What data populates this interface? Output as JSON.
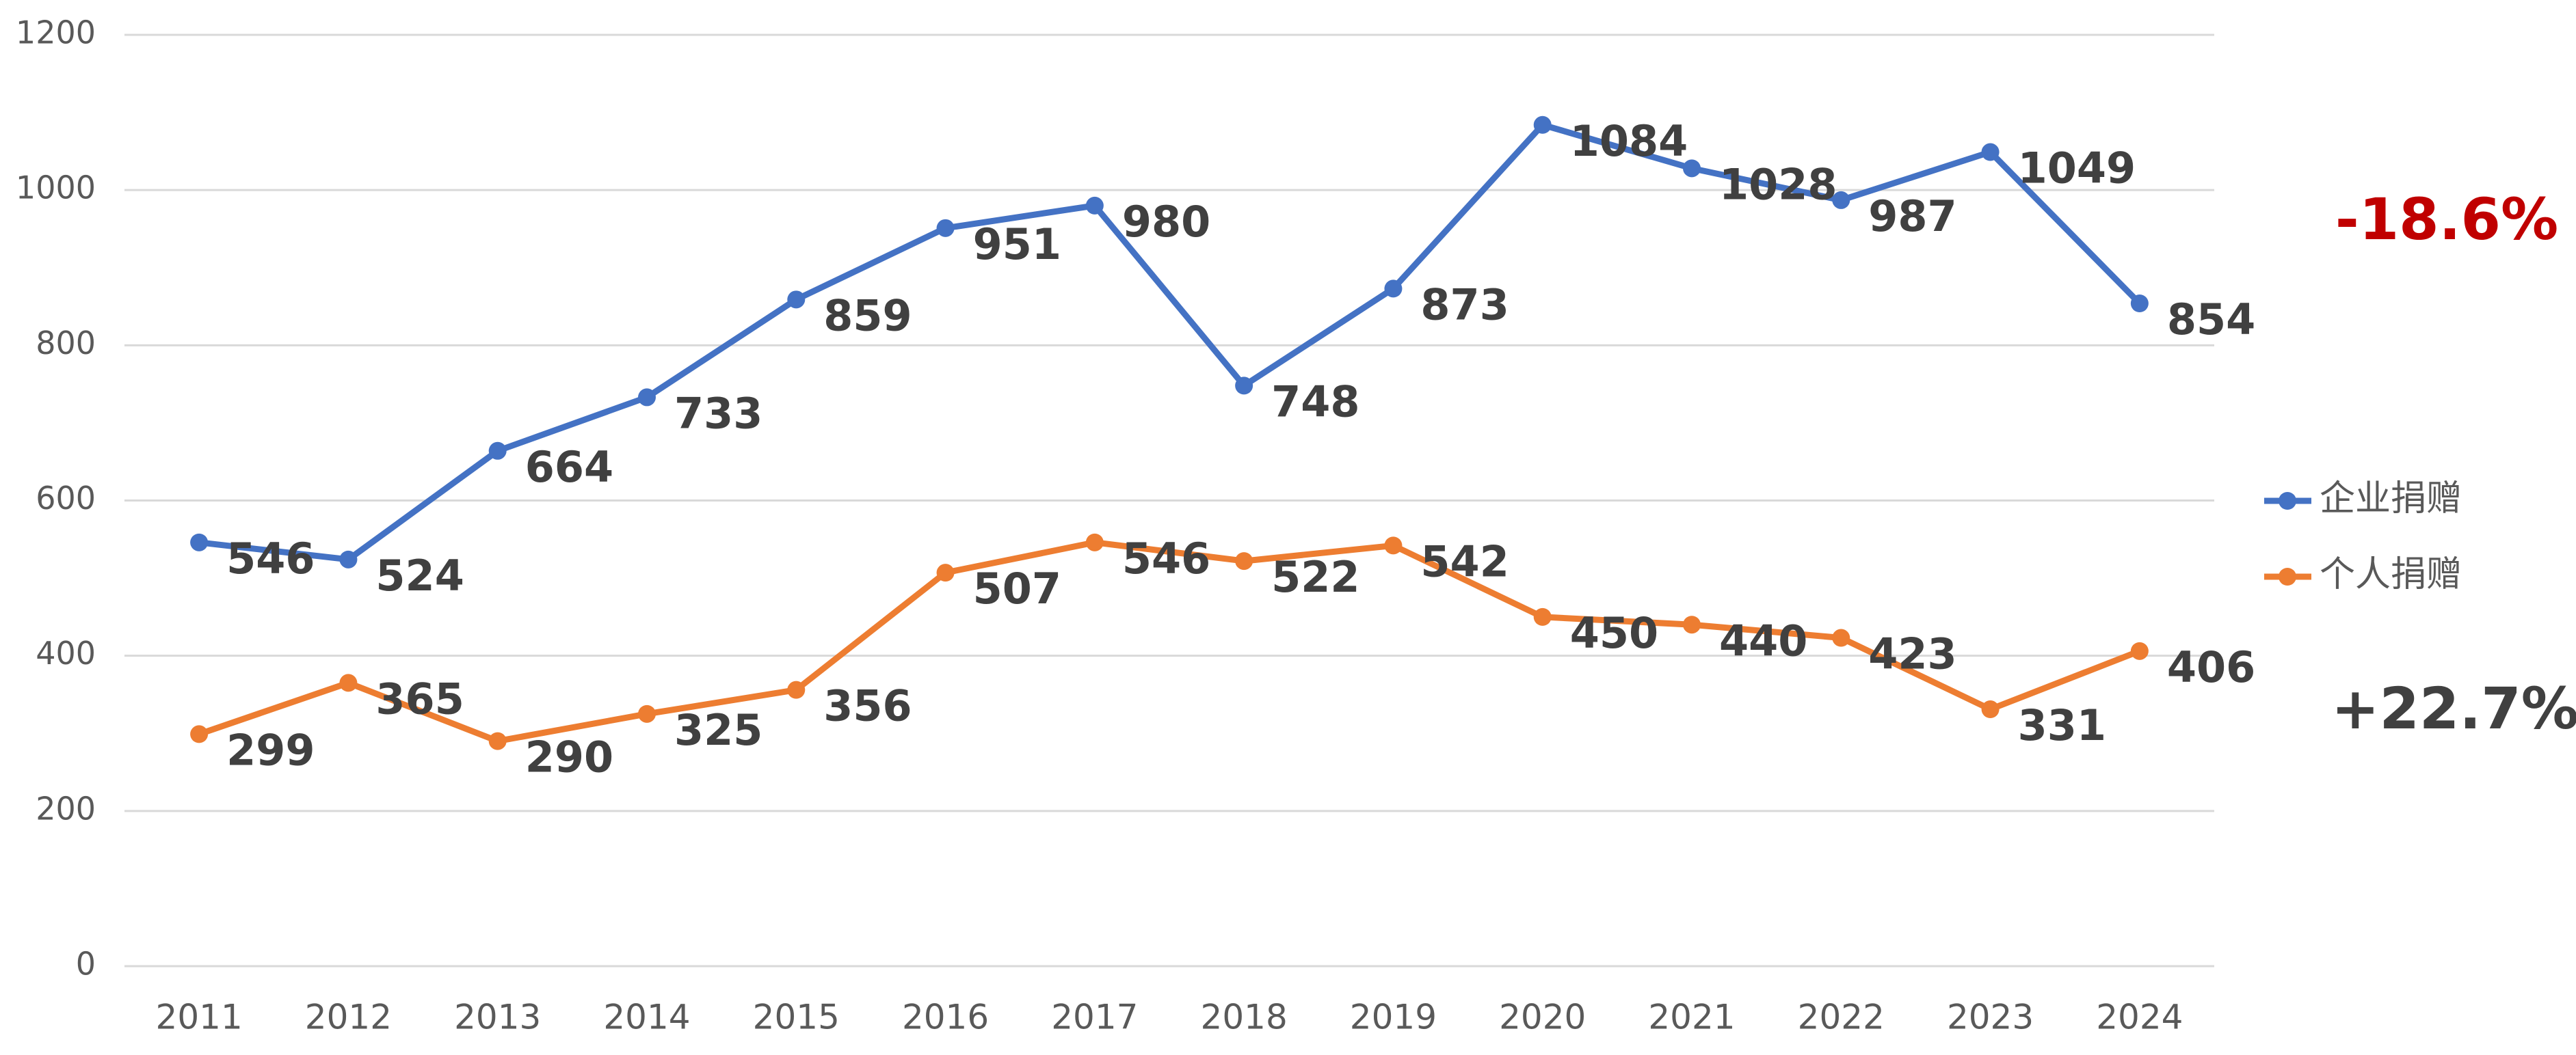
{
  "chart_data": {
    "type": "line",
    "categories": [
      "2011",
      "2012",
      "2013",
      "2014",
      "2015",
      "2016",
      "2017",
      "2018",
      "2019",
      "2020",
      "2021",
      "2022",
      "2023",
      "2024"
    ],
    "series": [
      {
        "name": "企业捐赠",
        "color": "#4472c4",
        "values": [
          546,
          524,
          664,
          733,
          859,
          951,
          980,
          748,
          873,
          1084,
          1028,
          987,
          1049,
          854
        ]
      },
      {
        "name": "个人捐赠",
        "color": "#ed7d31",
        "values": [
          299,
          365,
          290,
          325,
          356,
          507,
          546,
          522,
          542,
          450,
          440,
          423,
          331,
          406
        ]
      }
    ],
    "ylim": [
      0,
      1200
    ],
    "yticks": [
      0,
      200,
      400,
      600,
      800,
      1000,
      1200
    ],
    "grid": true,
    "annotations": [
      {
        "text": "-18.6%",
        "color": "#c00000"
      },
      {
        "text": "+22.7%",
        "color": "#404040"
      }
    ]
  }
}
